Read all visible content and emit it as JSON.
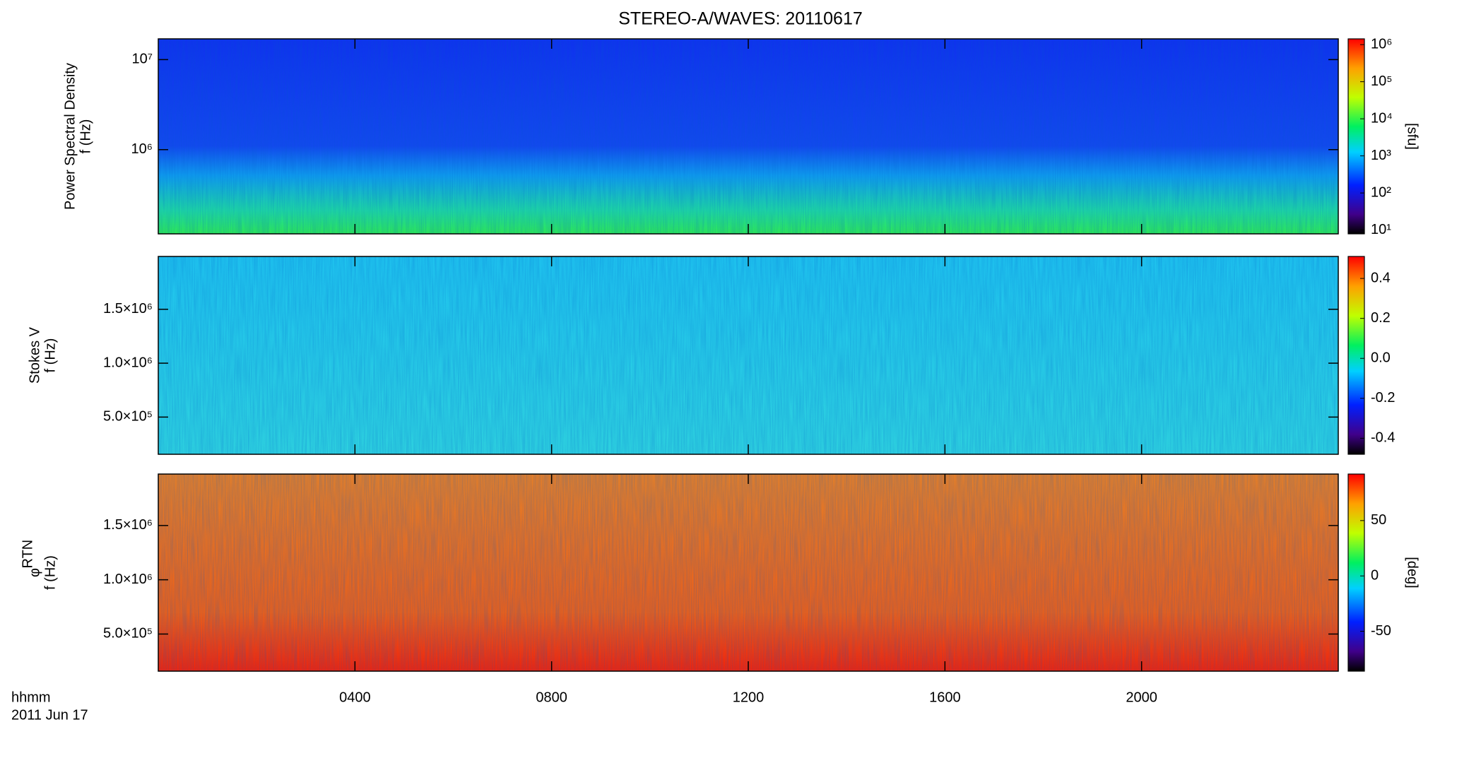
{
  "chart_data": [
    {
      "type": "heatmap",
      "title": "STEREO-A/WAVES: 20110617",
      "ylabel": [
        "Power Spectral Density",
        "f (Hz)"
      ],
      "ylog": true,
      "ylim": [
        116000,
        17000000
      ],
      "yticks": [
        {
          "value": 1000000,
          "label": "10⁶"
        },
        {
          "value": 10000000,
          "label": "10⁷"
        }
      ],
      "xlim": [
        0,
        24
      ],
      "xticks": [
        {
          "value": 4,
          "label": "0400"
        },
        {
          "value": 8,
          "label": "0800"
        },
        {
          "value": 12,
          "label": "1200"
        },
        {
          "value": 16,
          "label": "1600"
        },
        {
          "value": 20,
          "label": "2000"
        }
      ],
      "zlog": true,
      "zlim": [
        7.9,
        1430000
      ],
      "zticks": [
        {
          "value": 10,
          "label": "10¹"
        },
        {
          "value": 100,
          "label": "10²"
        },
        {
          "value": 1000,
          "label": "10³"
        },
        {
          "value": 10000,
          "label": "10⁴"
        },
        {
          "value": 100000,
          "label": "10⁵"
        },
        {
          "value": 1000000,
          "label": "10⁶"
        }
      ],
      "zlabel": "[sfu]"
    },
    {
      "type": "heatmap",
      "ylabel": [
        "Stokes V",
        "f (Hz)"
      ],
      "ylog": false,
      "ylim": [
        155000,
        1990000
      ],
      "yticks": [
        {
          "value": 500000,
          "label": "5.0×10⁵"
        },
        {
          "value": 1000000,
          "label": "1.0×10⁶"
        },
        {
          "value": 1500000,
          "label": "1.5×10⁶"
        }
      ],
      "xlim": [
        0,
        24
      ],
      "xticks": [
        {
          "value": 4,
          "label": "0400"
        },
        {
          "value": 8,
          "label": "0800"
        },
        {
          "value": 12,
          "label": "1200"
        },
        {
          "value": 16,
          "label": "1600"
        },
        {
          "value": 20,
          "label": "2000"
        }
      ],
      "zlog": false,
      "zlim": [
        -0.48,
        0.51
      ],
      "zticks": [
        -0.4,
        -0.2,
        {
          "value": 0,
          "label": "0.0"
        },
        0.2,
        0.4
      ]
    },
    {
      "type": "heatmap",
      "ylabel": [
        "φ",
        "f (Hz)"
      ],
      "ylabel_sub": "RTN",
      "ylog": false,
      "ylim": [
        158000,
        1974000
      ],
      "yticks": [
        {
          "value": 500000,
          "label": "5.0×10⁵"
        },
        {
          "value": 1000000,
          "label": "1.0×10⁶"
        },
        {
          "value": 1500000,
          "label": "1.5×10⁶"
        }
      ],
      "xlim": [
        0,
        24
      ],
      "xticks": [
        {
          "value": 4,
          "label": "0400"
        },
        {
          "value": 8,
          "label": "0800"
        },
        {
          "value": 12,
          "label": "1200"
        },
        {
          "value": 16,
          "label": "1600"
        },
        {
          "value": 20,
          "label": "2000"
        }
      ],
      "zlog": false,
      "zlim": [
        -86,
        92
      ],
      "zticks": [
        -50,
        0,
        50
      ],
      "zlabel": "[deg]",
      "xlabel": "hhmm",
      "date": "2011 Jun 17"
    }
  ]
}
